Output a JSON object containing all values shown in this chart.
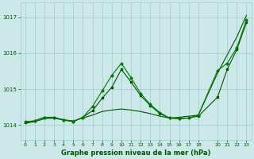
{
  "background_color": "#cce8e8",
  "grid_color": "#99cccc",
  "line_color_dark": "#005500",
  "line_color_light": "#007700",
  "xlabel": "Graphe pression niveau de la mer (hPa)",
  "xlim": [
    -0.5,
    23.5
  ],
  "ylim": [
    1013.6,
    1017.4
  ],
  "yticks": [
    1014,
    1015,
    1016,
    1017
  ],
  "xticks": [
    0,
    1,
    2,
    3,
    4,
    5,
    6,
    7,
    8,
    9,
    10,
    11,
    12,
    13,
    14,
    15,
    16,
    17,
    18,
    20,
    21,
    22,
    23
  ],
  "series1_x": [
    0,
    1,
    2,
    3,
    4,
    5,
    6,
    7,
    8,
    9,
    10,
    11,
    12,
    13,
    14,
    15,
    16,
    17,
    18,
    20,
    21,
    22,
    23
  ],
  "series1_y": [
    1014.05,
    1014.1,
    1014.18,
    1014.2,
    1014.15,
    1014.12,
    1014.2,
    1014.28,
    1014.38,
    1014.42,
    1014.45,
    1014.42,
    1014.38,
    1014.32,
    1014.25,
    1014.2,
    1014.22,
    1014.25,
    1014.28,
    1015.45,
    1015.95,
    1016.45,
    1017.05
  ],
  "series2_x": [
    0,
    1,
    2,
    3,
    4,
    5,
    6,
    7,
    8,
    9,
    10,
    11,
    12,
    13,
    14,
    15,
    16,
    17,
    18,
    20,
    21,
    22,
    23
  ],
  "series2_y": [
    1014.08,
    1014.12,
    1014.22,
    1014.2,
    1014.14,
    1014.1,
    1014.22,
    1014.4,
    1014.75,
    1015.05,
    1015.55,
    1015.2,
    1014.82,
    1014.55,
    1014.32,
    1014.2,
    1014.18,
    1014.2,
    1014.25,
    1014.78,
    1015.55,
    1016.1,
    1016.85
  ],
  "series3_x": [
    0,
    1,
    2,
    3,
    4,
    5,
    6,
    7,
    8,
    9,
    10,
    11,
    12,
    13,
    14,
    15,
    16,
    17,
    18,
    20,
    21,
    22,
    23
  ],
  "series3_y": [
    1014.1,
    1014.12,
    1014.22,
    1014.22,
    1014.15,
    1014.1,
    1014.22,
    1014.52,
    1014.95,
    1015.38,
    1015.72,
    1015.32,
    1014.88,
    1014.58,
    1014.35,
    1014.2,
    1014.18,
    1014.2,
    1014.28,
    1015.52,
    1015.72,
    1016.15,
    1016.92
  ]
}
